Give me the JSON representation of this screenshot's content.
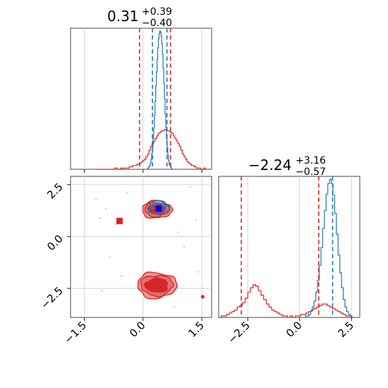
{
  "colors": {
    "series_a": "#d62728",
    "series_a_fill_light": "#ee9a9a",
    "series_a_fill_dark": "#d62728",
    "series_b": "#1f77b4",
    "series_b_marker": "#0000ff",
    "grid": "#cccccc",
    "frame": "#333333"
  },
  "chart_data": {
    "type": "corner",
    "parameters": [
      {
        "title_value": "0.31",
        "title_plus": "+0.39",
        "title_minus": "−0.40",
        "range": [
          -1.85,
          1.75
        ],
        "ticks": [
          -1.5,
          0.0,
          1.5
        ],
        "tick_labels": [
          "−1.5",
          "0.0",
          "1.5"
        ]
      },
      {
        "title_value": "−2.24",
        "title_plus": "+3.16",
        "title_minus": "−0.57",
        "range": [
          -3.9,
          2.9
        ],
        "ticks": [
          -2.5,
          0.0,
          2.5
        ],
        "tick_labels": [
          "−2.5",
          "0.0",
          "2.5"
        ]
      }
    ],
    "marginals": [
      {
        "parameter": 0,
        "series": [
          {
            "color_key": "series_a",
            "bin_edges": [
              -1.2,
              1.7
            ],
            "counts": [
              0,
              0,
              0,
              0,
              0,
              0,
              0,
              0,
              0,
              0,
              0,
              0,
              1,
              1,
              0,
              0,
              1,
              0,
              1,
              1,
              1,
              1,
              2,
              2,
              3,
              3,
              3,
              4,
              4,
              5,
              6,
              7,
              8,
              10,
              12,
              15,
              18,
              20,
              22,
              24,
              26,
              28,
              29,
              30,
              30,
              31,
              31,
              30,
              30,
              29,
              28,
              26,
              24,
              22,
              20,
              18,
              15,
              12,
              10,
              8,
              6,
              5,
              4,
              3,
              3,
              2,
              1,
              1,
              1,
              0,
              0,
              1,
              0,
              0,
              0
            ],
            "quantile_lines": [
              -0.09,
              0.7
            ]
          },
          {
            "color_key": "series_b",
            "bin_edges": [
              0.1,
              0.75
            ],
            "counts": [
              0,
              1,
              1,
              2,
              3,
              5,
              8,
              12,
              17,
              24,
              32,
              42,
              53,
              65,
              76,
              86,
              95,
              102,
              106,
              108,
              107,
              104,
              98,
              90,
              79,
              67,
              55,
              43,
              33,
              24,
              17,
              11,
              7,
              4,
              3,
              2,
              1,
              0
            ],
            "quantile_lines": [
              0.24,
              0.61
            ]
          }
        ]
      },
      {
        "parameter": 1,
        "series": [
          {
            "color_key": "series_a",
            "bin_edges": [
              -3.9,
              2.6
            ],
            "counts": [
              0,
              1,
              1,
              2,
              3,
              4,
              5,
              7,
              8,
              10,
              13,
              17,
              20,
              22,
              21,
              18,
              15,
              12,
              9,
              7,
              5,
              4,
              3,
              2,
              1,
              1,
              0,
              1,
              0,
              1,
              1,
              2,
              2,
              3,
              4,
              5,
              6,
              7,
              8,
              9,
              9,
              8,
              7,
              6,
              5,
              4,
              3,
              2,
              1,
              1,
              0
            ],
            "quantile_lines": [
              -2.81,
              0.92
            ]
          },
          {
            "color_key": "series_b",
            "bin_edges": [
              0.2,
              2.6
            ],
            "counts": [
              0,
              1,
              1,
              2,
              4,
              7,
              11,
              17,
              25,
              35,
              47,
              60,
              72,
              83,
              90,
              93,
              90,
              82,
              70,
              56,
              42,
              30,
              20,
              12,
              7,
              4,
              2,
              1,
              0
            ],
            "quantile_lines": [
              1.59
            ]
          }
        ]
      }
    ],
    "joint": {
      "x_parameter": 0,
      "y_parameter": 1,
      "clusters": [
        {
          "series": "series_a",
          "center": [
            0.35,
            1.3
          ],
          "radius": [
            0.38,
            0.42
          ]
        },
        {
          "series": "series_a",
          "center": [
            0.35,
            -2.35
          ],
          "radius": [
            0.5,
            0.62
          ]
        },
        {
          "series": "series_b",
          "center": [
            0.4,
            1.4
          ],
          "radius": [
            0.26,
            0.32
          ]
        }
      ],
      "markers": [
        {
          "color_key": "series_a",
          "x": 0.35,
          "y": 1.32
        },
        {
          "color_key": "series_b_marker",
          "x": 0.4,
          "y": 1.35
        },
        {
          "color_key": "series_a",
          "x": -0.6,
          "y": 0.75
        },
        {
          "color_key": "series_a",
          "x": 0.35,
          "y": -2.4
        },
        {
          "color_key": "series_a",
          "x": 1.52,
          "y": -2.9
        }
      ],
      "outlier_points": [
        [
          -0.95,
          1.35
        ],
        [
          -0.7,
          0.6
        ],
        [
          -1.1,
          0.9
        ],
        [
          0.9,
          0.2
        ],
        [
          1.05,
          -0.5
        ],
        [
          -0.85,
          -1.0
        ],
        [
          1.4,
          -1.7
        ],
        [
          -0.55,
          -1.9
        ],
        [
          1.2,
          2.4
        ],
        [
          -1.2,
          1.8
        ],
        [
          0.8,
          -3.4
        ],
        [
          -0.4,
          2.1
        ],
        [
          1.35,
          0.8
        ],
        [
          -1.05,
          -2.6
        ]
      ]
    }
  }
}
